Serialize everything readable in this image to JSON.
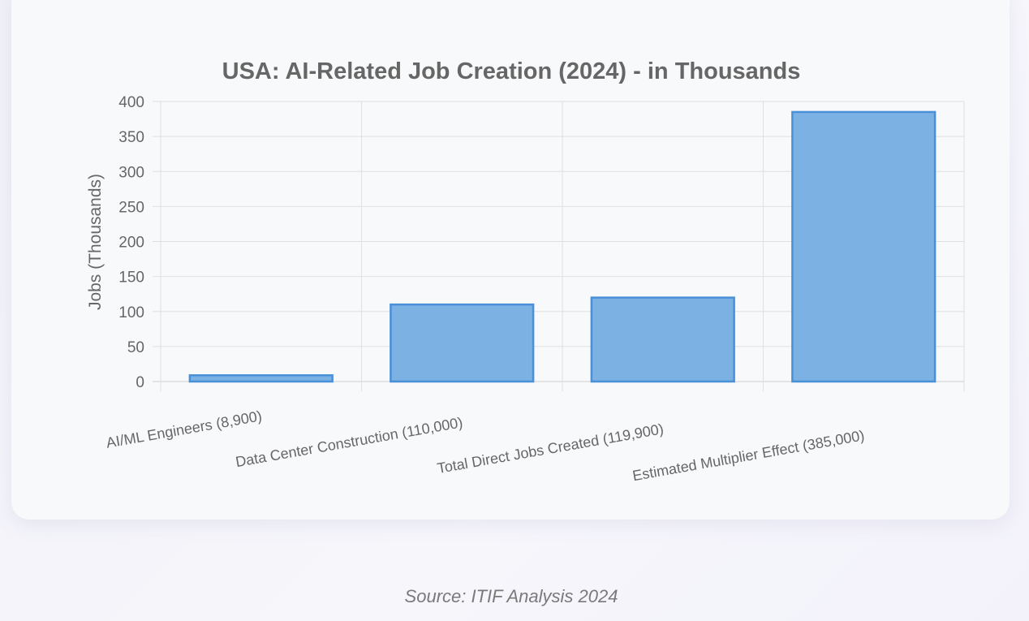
{
  "chart_data": {
    "type": "bar",
    "title": "USA: AI-Related Job Creation (2024) - in Thousands",
    "xlabel": "",
    "ylabel": "Jobs (Thousands)",
    "categories": [
      "AI/ML Engineers (8,900)",
      "Data Center Construction (110,000)",
      "Total Direct Jobs Created (119,900)",
      "Estimated Multiplier Effect (385,000)"
    ],
    "values": [
      8.9,
      110,
      119.9,
      385
    ],
    "ylim": [
      0,
      400
    ],
    "yticks": [
      0,
      50,
      100,
      150,
      200,
      250,
      300,
      350,
      400
    ],
    "grid": true,
    "legend": "none",
    "colors": {
      "fill": "#7bb1e3",
      "border": "#4a90d9",
      "grid": "#e0e0e0",
      "text": "#666666"
    }
  },
  "source": "Source: ITIF Analysis 2024"
}
